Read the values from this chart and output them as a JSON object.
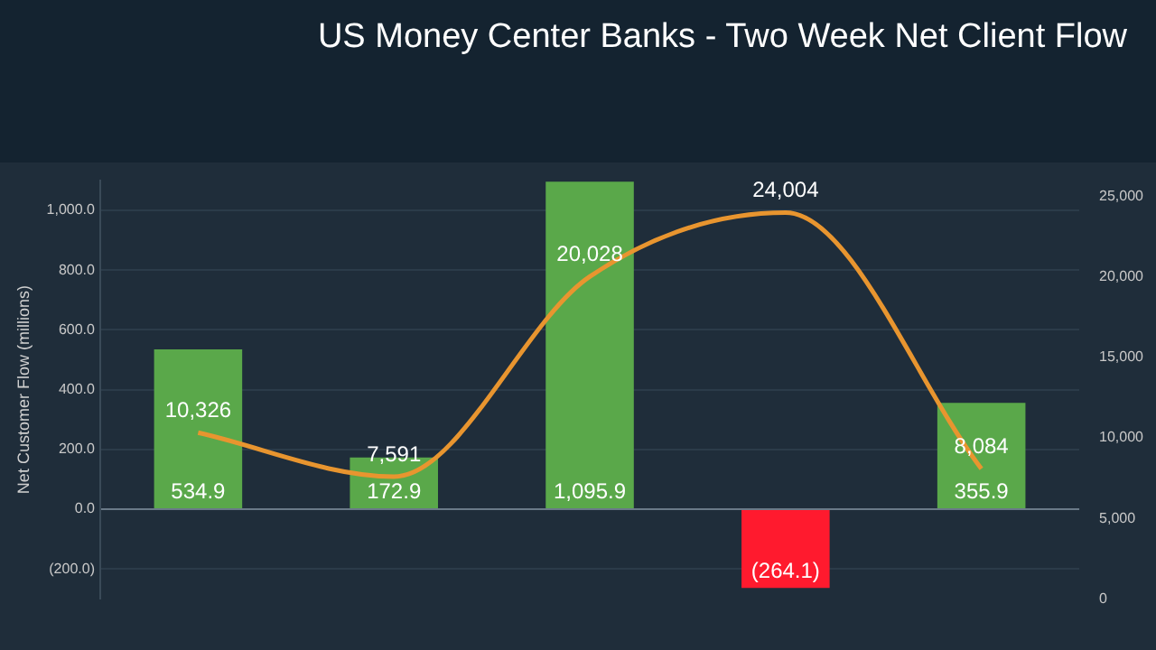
{
  "chart_data": {
    "type": "bar",
    "title": "US Money Center Banks - Two Week Net Client Flow",
    "ylabel": "Net Customer Flow (millions)",
    "categories": [
      null,
      null,
      null,
      null,
      null
    ],
    "series": [
      {
        "colors": [
          "#5aa84a",
          "#5aa84a",
          "#5aa84a",
          "#ff1a2e",
          "#5aa84a"
        ],
        "values": [
          534.9,
          172.9,
          1095.9,
          -264.1,
          355.9
        ],
        "value_labels": [
          "534.9",
          "172.9",
          "1,095.9",
          "(264.1)",
          "355.9"
        ]
      },
      {
        "type": "line",
        "axis": "y2",
        "color": "#e8952f",
        "values": [
          10326,
          7591,
          20028,
          24004,
          8084
        ],
        "value_labels": [
          "10,326",
          "7,591",
          "20,028",
          "24,004",
          "8,084"
        ]
      }
    ],
    "ylim": [
      -300,
      1100
    ],
    "yticks": [
      {
        "value": -200,
        "label": "(200.0)"
      },
      {
        "value": 0,
        "label": "0.0"
      },
      {
        "value": 200,
        "label": "200.0"
      },
      {
        "value": 400,
        "label": "400.0"
      },
      {
        "value": 600,
        "label": "600.0"
      },
      {
        "value": 800,
        "label": "800.0"
      },
      {
        "value": 1000,
        "label": "1,000.0"
      }
    ],
    "y2lim": [
      0,
      26000
    ],
    "y2ticks": [
      {
        "value": 0,
        "label": "0"
      },
      {
        "value": 5000,
        "label": "5,000"
      },
      {
        "value": 10000,
        "label": "10,000"
      },
      {
        "value": 15000,
        "label": "15,000"
      },
      {
        "value": 20000,
        "label": "20,000"
      },
      {
        "value": 25000,
        "label": "25,000"
      }
    ],
    "grid": "y",
    "marker": "none"
  }
}
